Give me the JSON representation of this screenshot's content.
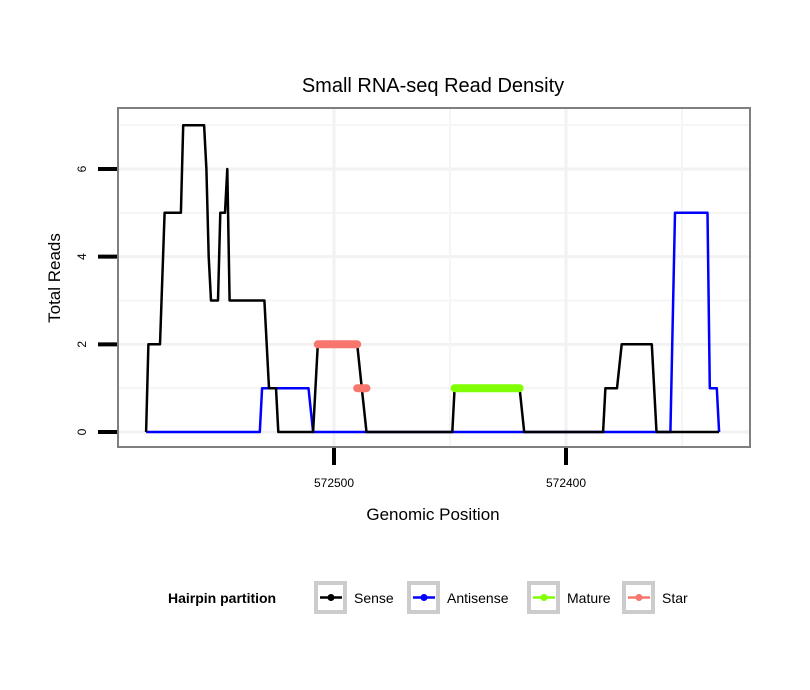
{
  "chart_data": {
    "type": "line",
    "title": "Small RNA-seq Read Density",
    "xlabel": "Genomic Position",
    "ylabel": "Total Reads",
    "x_reversed": true,
    "xlim": [
      572600,
      572320
    ],
    "ylim": [
      -0.35,
      7.4
    ],
    "x_ticks": [
      572500,
      572400
    ],
    "x_tick_labels": [
      "572500",
      "572400"
    ],
    "y_ticks": [
      0,
      2,
      4,
      6
    ],
    "y_tick_labels": [
      "0",
      "2",
      "4",
      "6"
    ],
    "grid": true,
    "legend": {
      "title": "Hairpin partition",
      "position": "bottom",
      "entries": [
        {
          "name": "Sense",
          "color": "#000000"
        },
        {
          "name": "Antisense",
          "color": "#0000ff"
        },
        {
          "name": "Mature",
          "color": "#7fff00"
        },
        {
          "name": "Star",
          "color": "#f8766d"
        }
      ]
    },
    "series": [
      {
        "name": "Sense",
        "color": "#000000",
        "x": [
          572581,
          572580,
          572575,
          572573,
          572566,
          572565,
          572556,
          572555,
          572554,
          572553,
          572550,
          572549,
          572547,
          572546,
          572545,
          572530,
          572528,
          572525,
          572524,
          572509,
          572507,
          572490,
          572488,
          572486,
          572449,
          572448,
          572420,
          572418,
          572384,
          572383,
          572378,
          572376,
          572363,
          572361,
          572334
        ],
        "y": [
          0,
          2,
          2,
          5,
          5,
          7,
          7,
          6,
          4,
          3,
          3,
          5,
          5,
          6,
          3,
          3,
          1,
          1,
          0,
          0,
          2,
          2,
          1,
          0,
          0,
          1,
          1,
          0,
          0,
          1,
          1,
          2,
          2,
          0,
          0
        ]
      },
      {
        "name": "Antisense",
        "color": "#0000ff",
        "x": [
          572581,
          572532,
          572531,
          572511,
          572509,
          572355,
          572353,
          572339,
          572338,
          572335,
          572334
        ],
        "y": [
          0,
          0,
          1,
          1,
          0,
          0,
          5,
          5,
          1,
          1,
          0
        ]
      },
      {
        "name": "Mature",
        "color": "#7fff00",
        "x": [
          572448,
          572420
        ],
        "y": [
          1,
          1
        ]
      },
      {
        "name": "Star",
        "color": "#f8766d",
        "segments": [
          {
            "x": [
              572507,
              572490
            ],
            "y": [
              2,
              2
            ]
          },
          {
            "x": [
              572490,
              572486
            ],
            "y": [
              1,
              1
            ]
          }
        ]
      }
    ]
  }
}
